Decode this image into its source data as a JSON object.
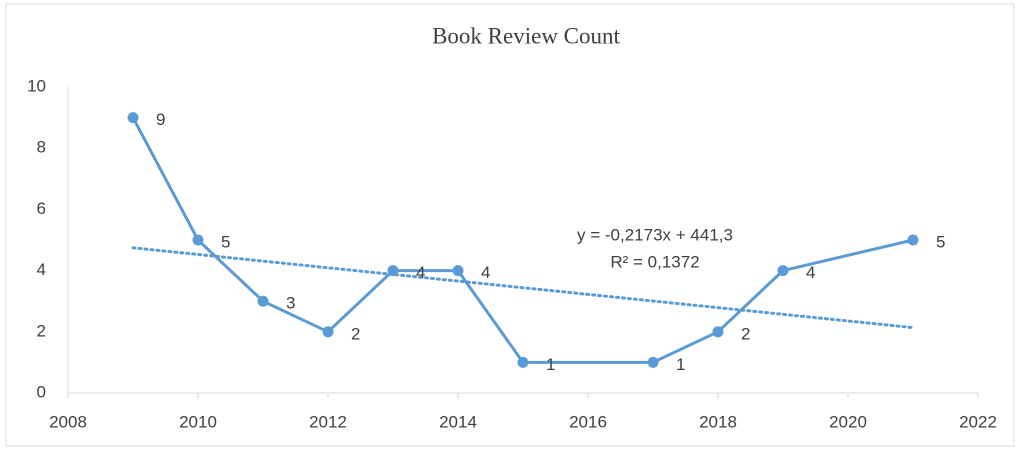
{
  "chart_data": {
    "type": "line",
    "title": "Book Review Count",
    "x": [
      2009,
      2010,
      2011,
      2012,
      2013,
      2014,
      2015,
      2017,
      2018,
      2019,
      2021
    ],
    "values": [
      9,
      5,
      3,
      2,
      4,
      4,
      1,
      1,
      2,
      4,
      5
    ],
    "color": "#5b9bd5",
    "xlim": [
      2008,
      2022
    ],
    "xticks": [
      2008,
      2010,
      2012,
      2014,
      2016,
      2018,
      2020,
      2022
    ],
    "ylim": [
      0,
      10
    ],
    "yticks": [
      0,
      2,
      4,
      6,
      8,
      10
    ],
    "grid": false,
    "trendline": {
      "slope": -0.2173,
      "intercept": 441.3,
      "xlim": [
        2009,
        2021
      ],
      "style": "dotted"
    },
    "annotations": [
      "y = -0,2173x + 441,3",
      "R² = 0,1372"
    ]
  }
}
